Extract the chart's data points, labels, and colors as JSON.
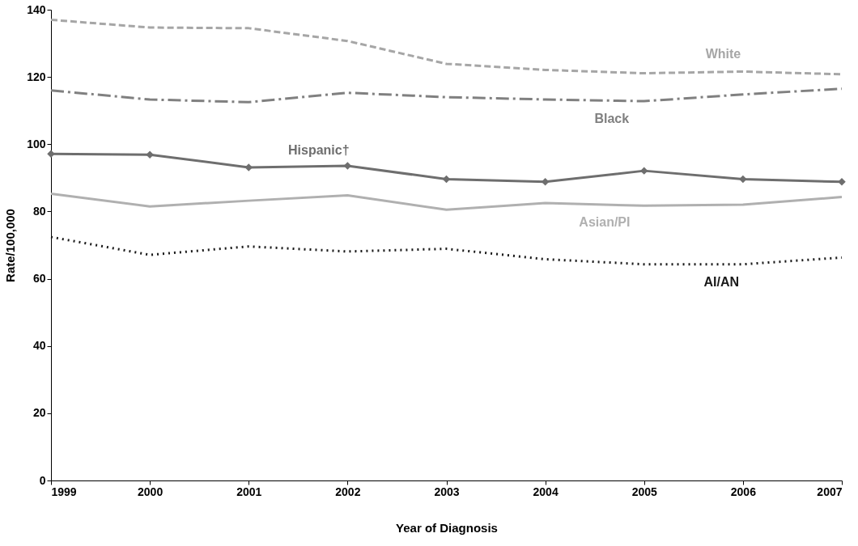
{
  "chart_data": {
    "type": "line",
    "xlabel": "Year of Diagnosis",
    "ylabel": "Rate/100,000",
    "x": [
      1999,
      2000,
      2001,
      2002,
      2003,
      2004,
      2005,
      2006,
      2007
    ],
    "xlim": [
      1999,
      2007
    ],
    "xticks": [
      1999,
      2000,
      2001,
      2002,
      2003,
      2004,
      2005,
      2006,
      2007
    ],
    "ylim": [
      0,
      140
    ],
    "yticks": [
      0,
      20,
      40,
      60,
      80,
      100,
      120,
      140
    ],
    "grid": false,
    "legend": false,
    "series": [
      {
        "name": "White",
        "color": "#a6a6a6",
        "line_style": "dashed",
        "marker": "none",
        "values": [
          137,
          134.7,
          134.5,
          130.7,
          123.9,
          122.1,
          121.1,
          121.6,
          120.8
        ]
      },
      {
        "name": "Black",
        "color": "#808080",
        "line_style": "dashdot",
        "marker": "none",
        "values": [
          116,
          113.3,
          112.5,
          115.3,
          114,
          113.3,
          112.8,
          114.8,
          116.5
        ]
      },
      {
        "name": "Hispanic†",
        "color": "#6e6e6e",
        "line_style": "solid",
        "marker": "diamond",
        "values": [
          97.1,
          96.9,
          93.1,
          93.6,
          89.6,
          88.8,
          92.1,
          89.6,
          88.8
        ]
      },
      {
        "name": "Asian/PI",
        "color": "#b0b0b0",
        "line_style": "solid",
        "marker": "none",
        "values": [
          85.3,
          81.5,
          83.2,
          84.8,
          80.5,
          82.5,
          81.7,
          82,
          84.3
        ]
      },
      {
        "name": "AI/AN",
        "color": "#1a1a1a",
        "line_style": "dotted",
        "marker": "none",
        "values": [
          72.4,
          67.1,
          69.6,
          68.1,
          68.9,
          65.8,
          64.3,
          64.3,
          66.3
        ]
      }
    ]
  }
}
